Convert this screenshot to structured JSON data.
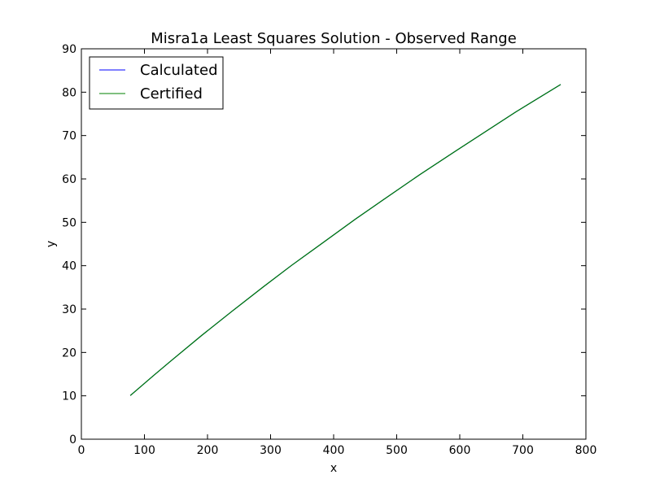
{
  "chart_data": {
    "type": "line",
    "title": "Misra1a Least Squares Solution - Observed Range",
    "xlabel": "x",
    "ylabel": "y",
    "xlim": [
      0,
      800
    ],
    "ylim": [
      0,
      90
    ],
    "xticks": [
      0,
      100,
      200,
      300,
      400,
      500,
      600,
      700,
      800
    ],
    "yticks": [
      0,
      10,
      20,
      30,
      40,
      50,
      60,
      70,
      80,
      90
    ],
    "grid": false,
    "legend_position": "top-left",
    "series": [
      {
        "name": "Calculated",
        "color": "#0000ff",
        "x": [
          77.6,
          114.9,
          141.1,
          190.8,
          239.9,
          289.0,
          332.8,
          378.4,
          434.8,
          477.3,
          536.8,
          593.1,
          689.1,
          760.0
        ],
        "y": [
          10.07,
          14.73,
          17.94,
          23.93,
          29.61,
          35.18,
          40.02,
          44.82,
          50.76,
          55.05,
          61.01,
          66.4,
          75.47,
          81.78
        ]
      },
      {
        "name": "Certified",
        "color": "#008000",
        "x": [
          77.6,
          114.9,
          141.1,
          190.8,
          239.9,
          289.0,
          332.8,
          378.4,
          434.8,
          477.3,
          536.8,
          593.1,
          689.1,
          760.0
        ],
        "y": [
          10.07,
          14.73,
          17.94,
          23.93,
          29.61,
          35.18,
          40.02,
          44.82,
          50.76,
          55.05,
          61.01,
          66.4,
          75.47,
          81.78
        ]
      }
    ]
  }
}
